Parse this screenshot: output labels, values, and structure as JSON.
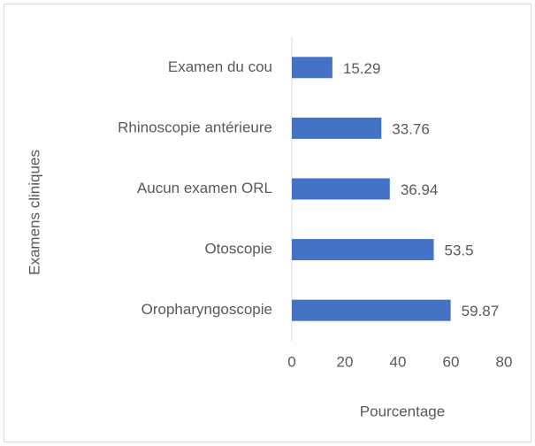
{
  "chart_data": {
    "type": "hbar",
    "categories": [
      "Examen du cou",
      "Rhinoscopie antérieure",
      "Aucun examen ORL",
      "Otoscopie",
      "Oropharyngoscopie"
    ],
    "values": [
      15.29,
      33.76,
      36.94,
      53.5,
      59.87
    ],
    "color": "#4472c4",
    "xlabel": "Pourcentage",
    "ylabel": "Examens cliniques",
    "xlim": [
      0,
      80
    ],
    "xticks": [
      0,
      20,
      40,
      60,
      80
    ],
    "grid": false
  }
}
